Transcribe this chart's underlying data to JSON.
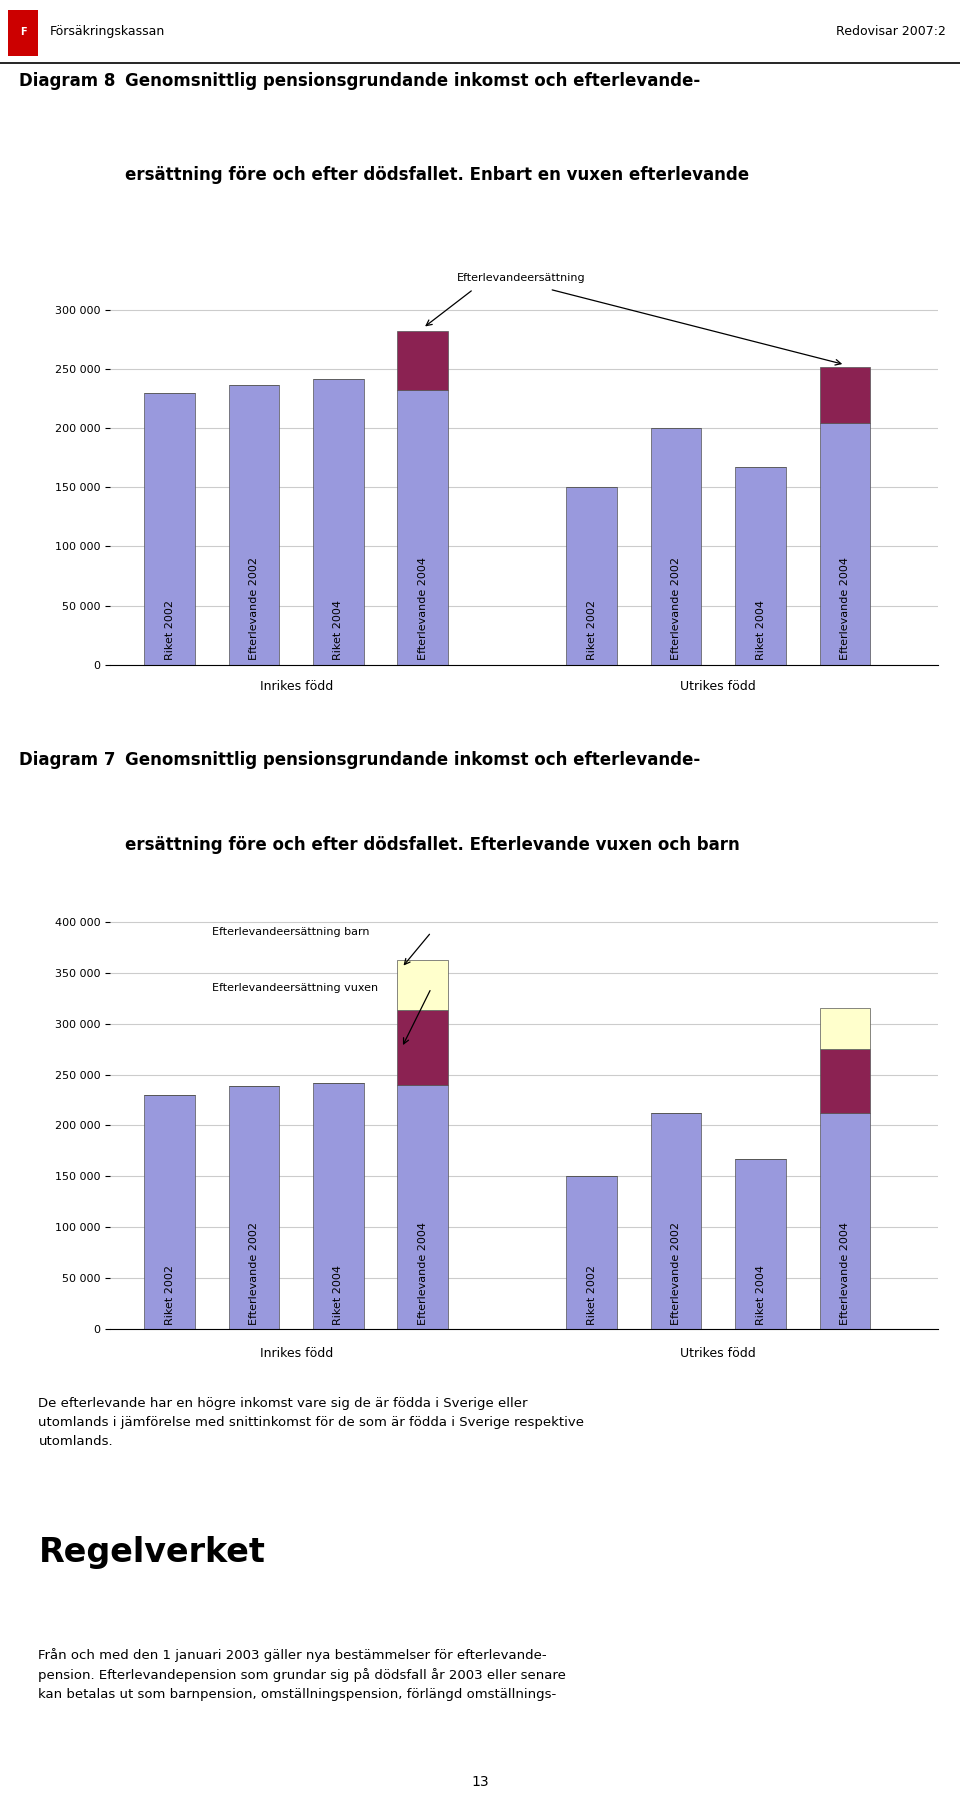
{
  "page_title_left": "Försäkringskassan",
  "page_title_right": "Redovisar 2007:2",
  "bar_labels": [
    "Riket 2002",
    "Efterlevande 2002",
    "Riket 2004",
    "Efterlevande 2004"
  ],
  "group_labels": [
    "Inrikes född",
    "Utrikes född"
  ],
  "diag8": {
    "title_num": "Diagram 8",
    "title_line1": "Genomsnittlig pensionsgrundande inkomst och efterlevande-",
    "title_line2": "ersättning före och efter dödsfallet. Enbart en vuxen efterlevande",
    "inrikes_base": [
      230000,
      237000,
      242000,
      233000
    ],
    "inrikes_dark": [
      0,
      0,
      0,
      50000
    ],
    "utrikes_base": [
      150000,
      200000,
      167000,
      205000
    ],
    "utrikes_dark": [
      0,
      0,
      0,
      47000
    ],
    "ylim": [
      0,
      350000
    ],
    "yticks": [
      0,
      50000,
      100000,
      150000,
      200000,
      250000,
      300000
    ],
    "ann_text": "Efterlevandeersättning"
  },
  "diag7": {
    "title_num": "Diagram 7",
    "title_line1": "Genomsnittlig pensionsgrundande inkomst och efterlevande-",
    "title_line2": "ersättning före och efter dödsfallet. Efterlevande vuxen och barn",
    "inrikes_base": [
      230000,
      239000,
      242000,
      240000
    ],
    "inrikes_dark": [
      0,
      0,
      0,
      73000
    ],
    "inrikes_yellow": [
      0,
      0,
      0,
      50000
    ],
    "utrikes_base": [
      150000,
      212000,
      167000,
      212000
    ],
    "utrikes_dark": [
      0,
      0,
      0,
      63000
    ],
    "utrikes_yellow": [
      0,
      0,
      0,
      40000
    ],
    "ylim": [
      0,
      420000
    ],
    "yticks": [
      0,
      50000,
      100000,
      150000,
      200000,
      250000,
      300000,
      350000,
      400000
    ],
    "ann_barn_text": "Efterlevandeersättning barn",
    "ann_vuxen_text": "Efterlevandeersättning vuxen"
  },
  "body_text": "De efterlevande har en högre inkomst vare sig de är födda i Sverige eller\nutomlands i jämförelse med snittinkomst för de som är födda i Sverige respektive\nutomlands.",
  "rule_title": "Regelverket",
  "rule_text": "Från och med den 1 januari 2003 gäller nya bestämmelser för efterlevande-\npension. Efterlevandepension som grundar sig på dödsfall år 2003 eller senare\nkan betalas ut som barnpension, omställningspension, förlängd omställnings-",
  "bar_color_blue": "#9999dd",
  "bar_color_dark": "#8b2252",
  "bar_color_yellow": "#ffffcc",
  "bar_edge_color": "#555555",
  "background_color": "#ffffff",
  "grid_color": "#cccccc"
}
